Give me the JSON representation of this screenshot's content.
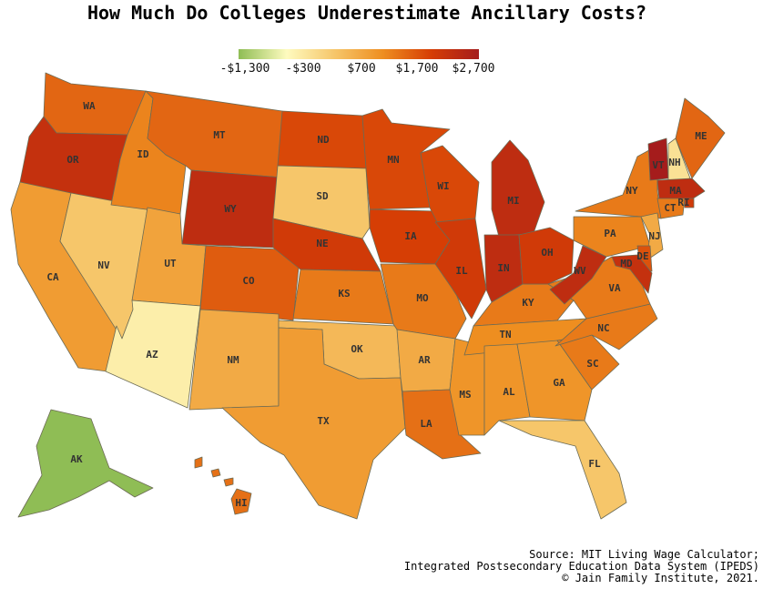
{
  "title": "How Much Do Colleges Underestimate Ancillary Costs?",
  "legend": {
    "ticks": [
      "-$1,300",
      "-$300",
      "$700",
      "$1,700",
      "$2,700"
    ],
    "min": -1300,
    "max": 2700,
    "colors": [
      "#8fbd55",
      "#fefbbf",
      "#f6c66a",
      "#ee8e20",
      "#d63e05",
      "#a51c1c"
    ]
  },
  "chart_data": {
    "type": "choropleth",
    "title": "How Much Do Colleges Underestimate Ancillary Costs?",
    "states": [
      {
        "abbr": "WA",
        "value": 1500
      },
      {
        "abbr": "OR",
        "value": 2200
      },
      {
        "abbr": "CA",
        "value": 900
      },
      {
        "abbr": "NV",
        "value": 300
      },
      {
        "abbr": "ID",
        "value": 1200
      },
      {
        "abbr": "MT",
        "value": 1500
      },
      {
        "abbr": "WY",
        "value": 2300
      },
      {
        "abbr": "UT",
        "value": 800
      },
      {
        "abbr": "AZ",
        "value": -300
      },
      {
        "abbr": "CO",
        "value": 1600
      },
      {
        "abbr": "NM",
        "value": 700
      },
      {
        "abbr": "ND",
        "value": 1800
      },
      {
        "abbr": "SD",
        "value": 300
      },
      {
        "abbr": "NE",
        "value": 2000
      },
      {
        "abbr": "KS",
        "value": 1300
      },
      {
        "abbr": "OK",
        "value": 500
      },
      {
        "abbr": "TX",
        "value": 900
      },
      {
        "abbr": "MN",
        "value": 1800
      },
      {
        "abbr": "IA",
        "value": 1900
      },
      {
        "abbr": "MO",
        "value": 1300
      },
      {
        "abbr": "AR",
        "value": 700
      },
      {
        "abbr": "LA",
        "value": 1400
      },
      {
        "abbr": "WI",
        "value": 1800
      },
      {
        "abbr": "IL",
        "value": 2000
      },
      {
        "abbr": "MS",
        "value": 1000
      },
      {
        "abbr": "MI",
        "value": 2300
      },
      {
        "abbr": "IN",
        "value": 2300
      },
      {
        "abbr": "KY",
        "value": 1300
      },
      {
        "abbr": "TN",
        "value": 1100
      },
      {
        "abbr": "AL",
        "value": 1000
      },
      {
        "abbr": "OH",
        "value": 2000
      },
      {
        "abbr": "GA",
        "value": 1000
      },
      {
        "abbr": "FL",
        "value": 300
      },
      {
        "abbr": "SC",
        "value": 1300
      },
      {
        "abbr": "NC",
        "value": 1300
      },
      {
        "abbr": "VA",
        "value": 1300
      },
      {
        "abbr": "WV",
        "value": 2300
      },
      {
        "abbr": "PA",
        "value": 1200
      },
      {
        "abbr": "NY",
        "value": 1300
      },
      {
        "abbr": "VT",
        "value": 2700
      },
      {
        "abbr": "NH",
        "value": -100
      },
      {
        "abbr": "ME",
        "value": 1500
      },
      {
        "abbr": "MA",
        "value": 2300
      },
      {
        "abbr": "RI",
        "value": 2000
      },
      {
        "abbr": "CT",
        "value": 1300
      },
      {
        "abbr": "NJ",
        "value": 700
      },
      {
        "abbr": "DE",
        "value": 1700
      },
      {
        "abbr": "MD",
        "value": 2200
      },
      {
        "abbr": "AK",
        "value": -1300
      },
      {
        "abbr": "HI",
        "value": 1400
      }
    ]
  },
  "source": {
    "line1": "Source: MIT Living Wage Calculator;",
    "line2": "Integrated Postsecondary Education Data System (IPEDS)",
    "line3": "© Jain Family Institute, 2021."
  }
}
